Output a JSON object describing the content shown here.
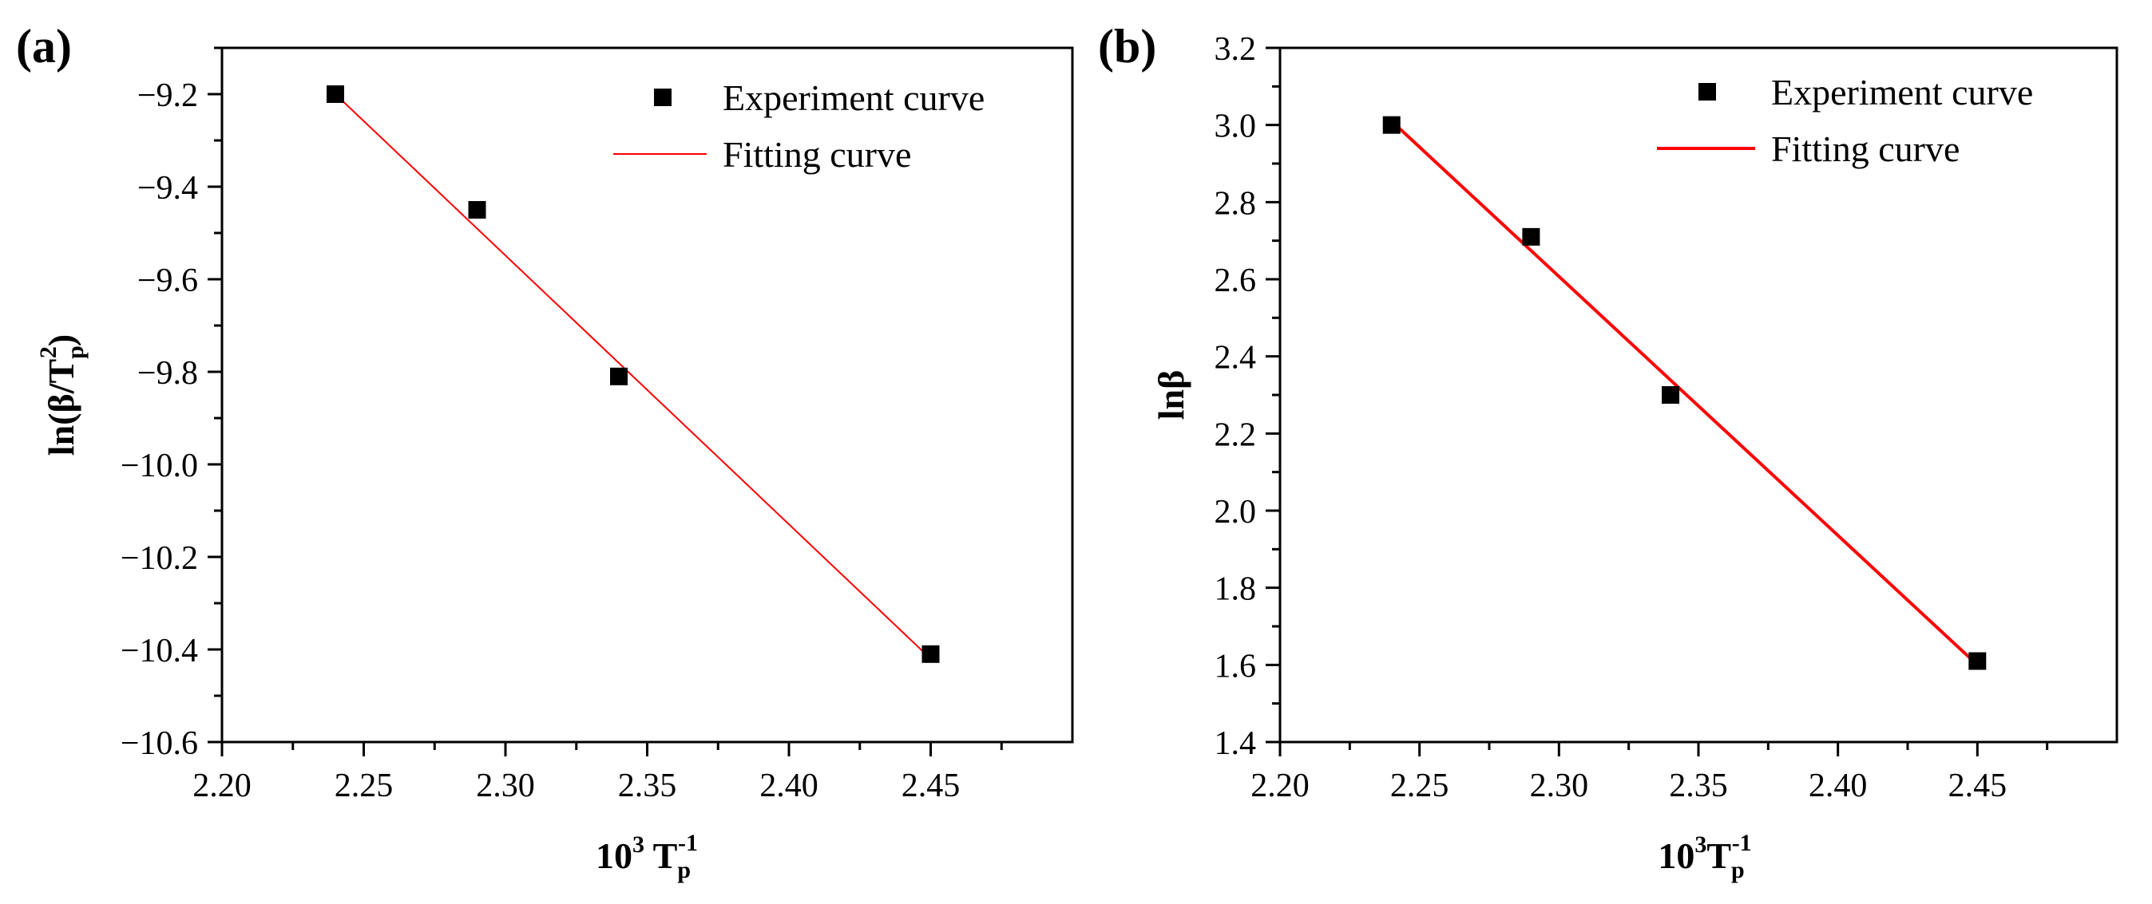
{
  "figure": {
    "colors": {
      "axis": "#000000",
      "marker": "#000000",
      "fit_line": "#ff0000",
      "background": "#ffffff"
    }
  },
  "chart_data": [
    {
      "type": "scatter",
      "panel_label": "(a)",
      "xlabel_base": "10",
      "xlabel_sup": "3",
      "xlabel_T": " T",
      "xlabel_sub": "p",
      "xlabel_sup2": "-1",
      "ylabel_prefix": "ln(β/T",
      "ylabel_sub": "p",
      "ylabel_sup": "2",
      "ylabel_suffix": ")",
      "xlim": [
        2.2,
        2.5
      ],
      "ylim": [
        -10.6,
        -9.1
      ],
      "x_ticks": [
        2.2,
        2.25,
        2.3,
        2.35,
        2.4,
        2.45
      ],
      "x_tick_labels": [
        "2.20",
        "2.25",
        "2.30",
        "2.35",
        "2.40",
        "2.45"
      ],
      "y_ticks": [
        -10.6,
        -10.4,
        -10.2,
        -10.0,
        -9.8,
        -9.6,
        -9.4,
        -9.2
      ],
      "y_tick_labels": [
        "−10.6",
        "−10.4",
        "−10.2",
        "−10.0",
        "−9.8",
        "−9.6",
        "−9.4",
        "−9.2"
      ],
      "series": [
        {
          "name": "Experiment curve",
          "kind": "marker",
          "x": [
            2.24,
            2.29,
            2.34,
            2.45
          ],
          "y": [
            -9.2,
            -9.45,
            -9.81,
            -10.41
          ]
        },
        {
          "name": "Fitting curve",
          "kind": "line",
          "x": [
            2.24,
            2.45
          ],
          "y": [
            -9.2,
            -10.42
          ],
          "line_width": 2
        }
      ],
      "legend": [
        "Experiment curve",
        "Fitting curve"
      ],
      "legend_position": "top-right"
    },
    {
      "type": "scatter",
      "panel_label": "(b)",
      "xlabel_base": "10",
      "xlabel_sup": "3",
      "xlabel_T": "T",
      "xlabel_sub": "p",
      "xlabel_sup2": "-1",
      "ylabel": "lnβ",
      "xlim": [
        2.2,
        2.5
      ],
      "ylim": [
        1.4,
        3.2
      ],
      "x_ticks": [
        2.2,
        2.25,
        2.3,
        2.35,
        2.4,
        2.45
      ],
      "x_tick_labels": [
        "2.20",
        "2.25",
        "2.30",
        "2.35",
        "2.40",
        "2.45"
      ],
      "y_ticks": [
        1.4,
        1.6,
        1.8,
        2.0,
        2.2,
        2.4,
        2.6,
        2.8,
        3.0,
        3.2
      ],
      "y_tick_labels": [
        "1.4",
        "1.6",
        "1.8",
        "2.0",
        "2.2",
        "2.4",
        "2.6",
        "2.8",
        "3.0",
        "3.2"
      ],
      "series": [
        {
          "name": "Experiment curve",
          "kind": "marker",
          "x": [
            2.24,
            2.29,
            2.34,
            2.45
          ],
          "y": [
            3.0,
            2.71,
            2.3,
            1.61
          ]
        },
        {
          "name": "Fitting curve",
          "kind": "line",
          "x": [
            2.24,
            2.45
          ],
          "y": [
            3.01,
            1.6
          ],
          "line_width": 4
        }
      ],
      "legend": [
        "Experiment curve",
        "Fitting curve"
      ],
      "legend_position": "top-right"
    }
  ]
}
